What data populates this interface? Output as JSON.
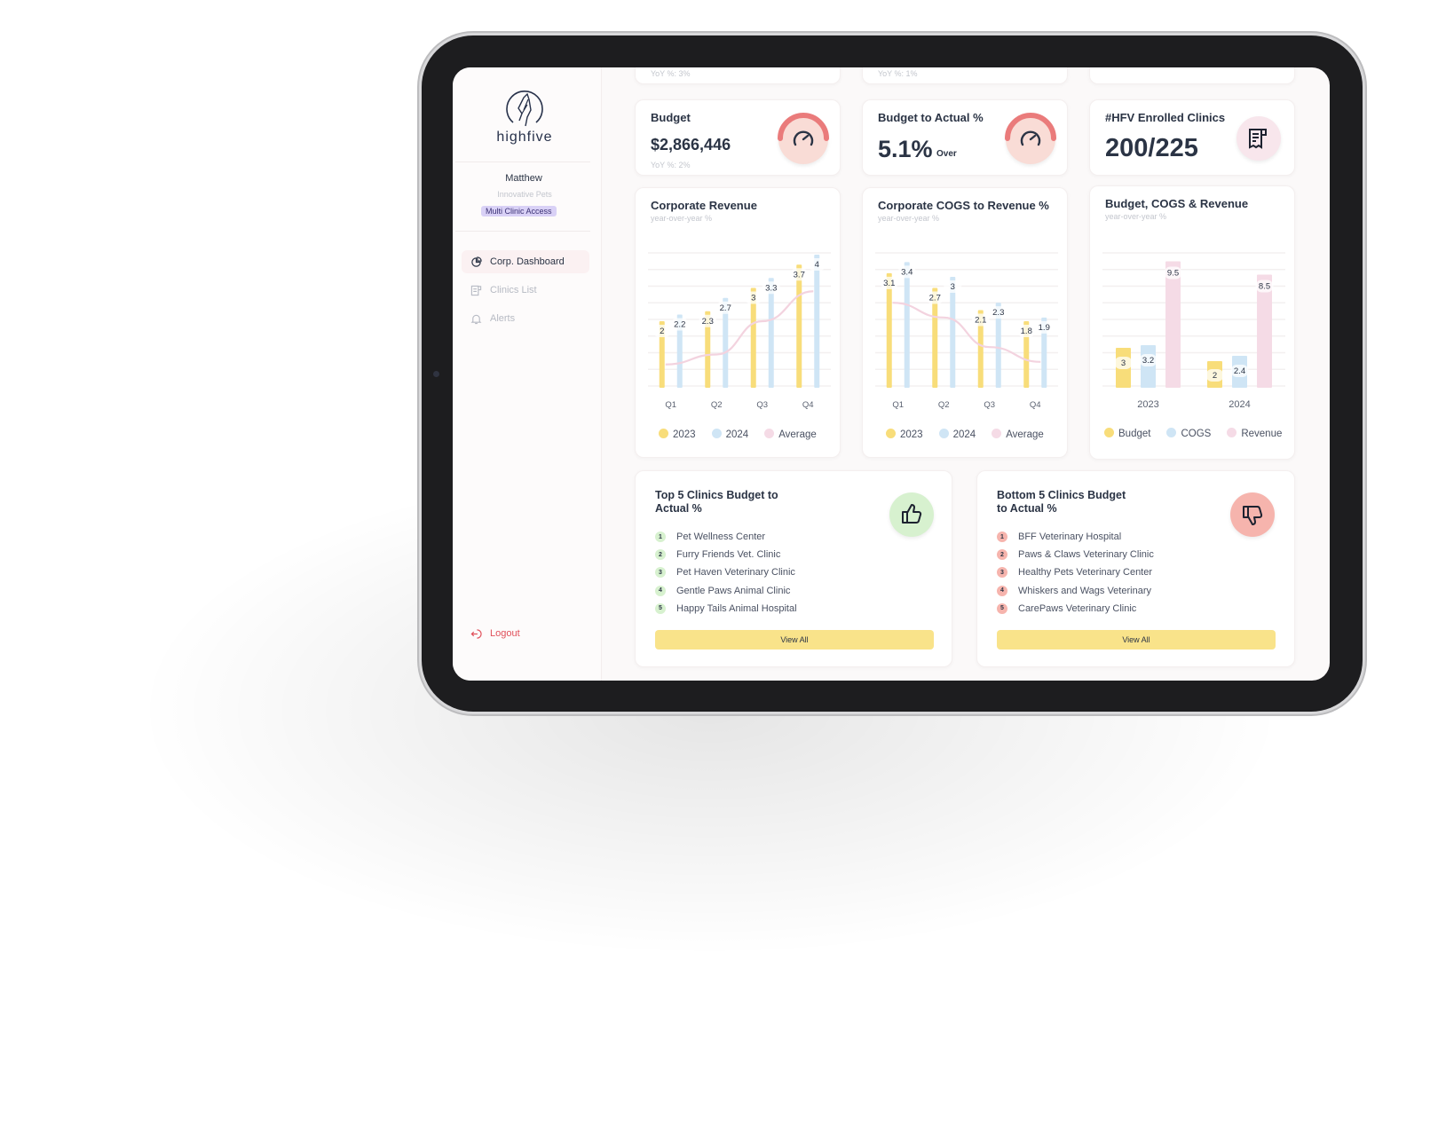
{
  "app": {
    "brand": "highfive"
  },
  "user": {
    "name": "Matthew",
    "org": "Innovative Pets",
    "access_badge": "Multi Clinic Access"
  },
  "sidebar": {
    "items": [
      {
        "label": "Corp. Dashboard",
        "icon": "pie-chart-icon",
        "active": true
      },
      {
        "label": "Clinics List",
        "icon": "clinic-list-icon",
        "active": false
      },
      {
        "label": "Alerts",
        "icon": "bell-icon",
        "active": false
      }
    ],
    "logout": "Logout"
  },
  "top_partial": {
    "card1_yoy": "YoY %:  3%",
    "card2_yoy": "YoY %:  1%"
  },
  "kpis": {
    "budget": {
      "title": "Budget",
      "value": "$2,866,446",
      "yoy": "YoY %:  2%",
      "icon": "speedometer-icon"
    },
    "budget_actual": {
      "title": "Budget to Actual %",
      "value": "5.1%",
      "suffix": "Over",
      "icon": "speedometer-icon"
    },
    "enrolled": {
      "title": "#HFV Enrolled Clinics",
      "value": "200/225",
      "icon": "receipt-icon"
    }
  },
  "colors": {
    "yellow": "#f8dd7a",
    "blue": "#cfe5f5",
    "pink": "#f5dbe6",
    "red_gauge": "#ea7b7b",
    "green_badge": "#d7f1cf",
    "red_badge": "#f6b4ad",
    "accent_purple": "#d9d1f6"
  },
  "chart_data": [
    {
      "type": "bar",
      "title": "Corporate Revenue",
      "subtitle": "year-over-year %",
      "categories": [
        "Q1",
        "Q2",
        "Q3",
        "Q4"
      ],
      "series": [
        {
          "name": "2023",
          "values": [
            2,
            2.3,
            3,
            3.7
          ]
        },
        {
          "name": "2024",
          "values": [
            2.2,
            2.7,
            3.3,
            4
          ]
        },
        {
          "name": "Average",
          "type": "line",
          "values": [
            0.7,
            1.0,
            2.0,
            2.9
          ]
        }
      ],
      "ylim": [
        0,
        4
      ],
      "grid": true,
      "legend": "bottom"
    },
    {
      "type": "bar",
      "title": "Corporate COGS to Revenue  %",
      "subtitle": "year-over-year %",
      "categories": [
        "Q1",
        "Q2",
        "Q3",
        "Q4"
      ],
      "series": [
        {
          "name": "2023",
          "values": [
            3.1,
            2.7,
            2.1,
            1.8
          ]
        },
        {
          "name": "2024",
          "values": [
            3.4,
            3,
            2.3,
            1.9
          ]
        },
        {
          "name": "Average",
          "type": "line",
          "values": [
            2.3,
            1.9,
            1.1,
            0.7
          ]
        }
      ],
      "ylim": [
        0,
        3.6
      ],
      "grid": true,
      "legend": "bottom"
    },
    {
      "type": "bar",
      "title": "Budget, COGS & Revenue",
      "subtitle": "year-over-year %",
      "categories": [
        "2023",
        "2024"
      ],
      "series": [
        {
          "name": "Budget",
          "values": [
            3,
            2
          ]
        },
        {
          "name": "COGS",
          "values": [
            3.2,
            2.4
          ]
        },
        {
          "name": "Revenue",
          "values": [
            9.5,
            8.5
          ]
        }
      ],
      "ylim": [
        0,
        10
      ],
      "grid": true,
      "legend": "bottom"
    }
  ],
  "top5": {
    "title": "Top 5 Clinics Budget to Actual %",
    "icon": "thumbs-up-icon",
    "items": [
      "Pet Wellness Center",
      "Furry Friends Vet. Clinic",
      "Pet Haven Veterinary Clinic",
      "Gentle Paws Animal Clinic",
      "Happy Tails Animal Hospital"
    ],
    "button": "View All"
  },
  "bottom5": {
    "title": "Bottom 5 Clinics Budget to Actual %",
    "icon": "thumbs-down-icon",
    "items": [
      "BFF Veterinary Hospital",
      "Paws & Claws Veterinary Clinic",
      "Healthy Pets Veterinary Center",
      "Whiskers and Wags Veterinary",
      "CarePaws Veterinary Clinic"
    ],
    "button": "View All"
  }
}
